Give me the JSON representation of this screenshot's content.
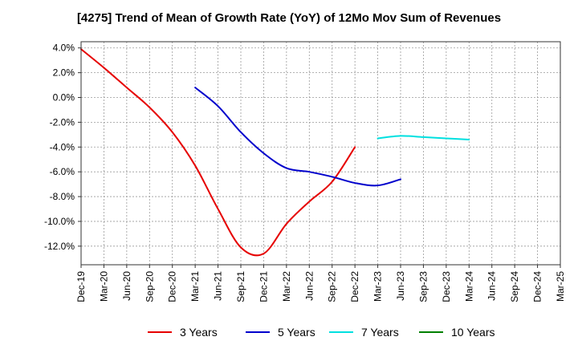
{
  "chart_data": {
    "type": "line",
    "title": "[4275]  Trend of Mean of Growth Rate (YoY) of 12Mo Mov Sum of Revenues",
    "xlabel": "",
    "ylabel": "",
    "grid": true,
    "legend_position": "bottom",
    "x_tick_labels": [
      "Dec-19",
      "Mar-20",
      "Jun-20",
      "Sep-20",
      "Dec-20",
      "Mar-21",
      "Jun-21",
      "Sep-21",
      "Dec-21",
      "Mar-22",
      "Jun-22",
      "Sep-22",
      "Dec-22",
      "Mar-23",
      "Jun-23",
      "Sep-23",
      "Dec-23",
      "Mar-24",
      "Jun-24",
      "Sep-24",
      "Dec-24",
      "Mar-25"
    ],
    "xlim": [
      0,
      21
    ],
    "ylim": [
      -13.5,
      4.5
    ],
    "y_ticks": [
      4,
      2,
      0,
      -2,
      -4,
      -6,
      -8,
      -10,
      -12
    ],
    "y_tick_labels": [
      "4.0%",
      "2.0%",
      "0.0%",
      "-2.0%",
      "-4.0%",
      "-6.0%",
      "-8.0%",
      "-10.0%",
      "-12.0%"
    ],
    "series": [
      {
        "name": "3 Years",
        "color": "#e60000",
        "start_index": 0,
        "values": [
          3.9,
          2.4,
          0.8,
          -0.8,
          -2.8,
          -5.5,
          -9.0,
          -12.1,
          -12.6,
          -10.2,
          -8.4,
          -6.8,
          -4.0
        ]
      },
      {
        "name": "5 Years",
        "color": "#0000cc",
        "start_index": 5,
        "values": [
          0.8,
          -0.7,
          -2.8,
          -4.5,
          -5.7,
          -6.0,
          -6.4,
          -6.9,
          -7.1,
          -6.6
        ]
      },
      {
        "name": "7 Years",
        "color": "#00e0e0",
        "start_index": 13,
        "values": [
          -3.3,
          -3.1,
          -3.2,
          -3.3,
          -3.4
        ]
      },
      {
        "name": "10 Years",
        "color": "#008000",
        "start_index": 0,
        "values": []
      }
    ]
  }
}
